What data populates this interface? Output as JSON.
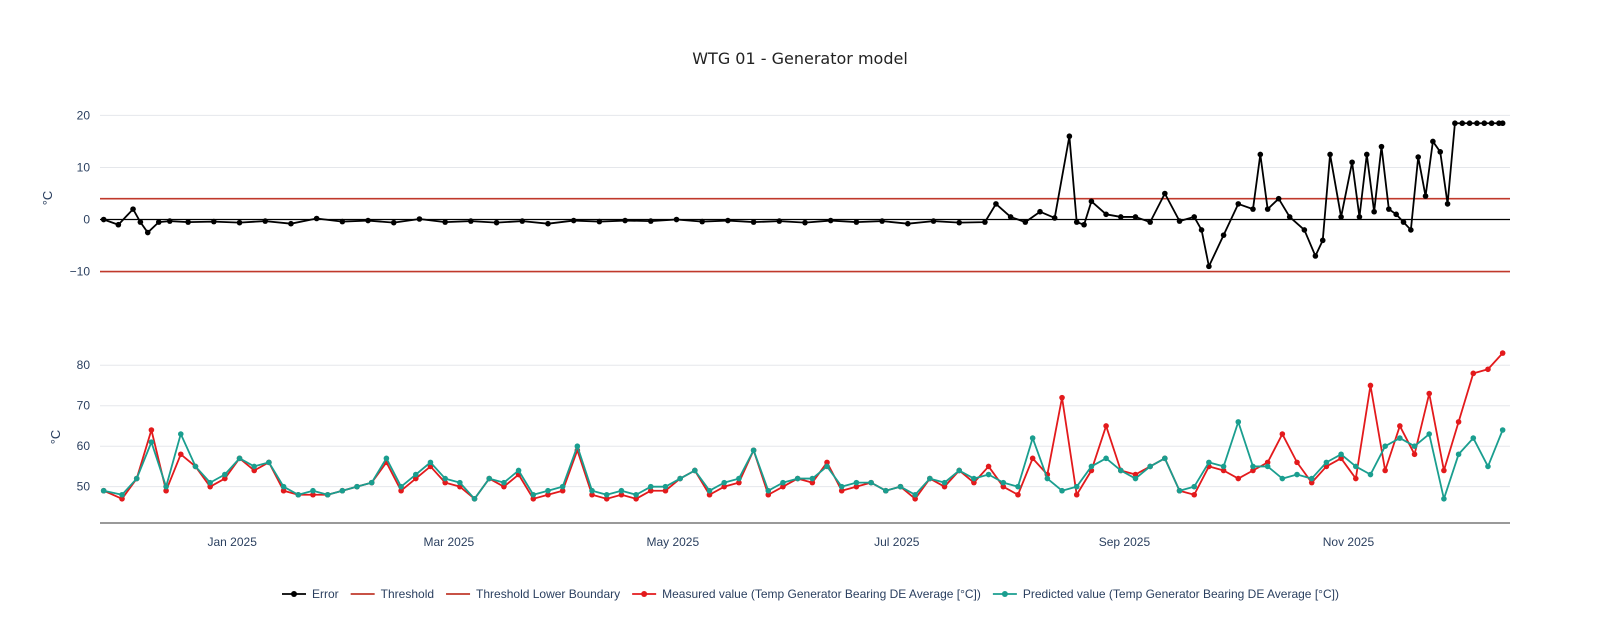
{
  "chart_data": [
    {
      "type": "line",
      "panel": "top",
      "title": "WTG 01 - Generator model",
      "ylabel": "°C",
      "ylim": [
        -12,
        22
      ],
      "yticks": [
        20,
        10,
        0,
        -10
      ],
      "ytick_labels": [
        "20",
        "10",
        "0",
        "−10"
      ],
      "xlim": [
        "2024-11-26",
        "2025-12-15"
      ],
      "grid": true,
      "series": [
        {
          "name": "Error",
          "color": "#000000",
          "x": [
            "2024-11-27",
            "2024-12-01",
            "2024-12-05",
            "2024-12-07",
            "2024-12-09",
            "2024-12-12",
            "2024-12-15",
            "2024-12-20",
            "2024-12-27",
            "2025-01-03",
            "2025-01-10",
            "2025-01-17",
            "2025-01-24",
            "2025-01-31",
            "2025-02-07",
            "2025-02-14",
            "2025-02-21",
            "2025-02-28",
            "2025-03-07",
            "2025-03-14",
            "2025-03-21",
            "2025-03-28",
            "2025-04-04",
            "2025-04-11",
            "2025-04-18",
            "2025-04-25",
            "2025-05-02",
            "2025-05-09",
            "2025-05-16",
            "2025-05-23",
            "2025-05-30",
            "2025-06-06",
            "2025-06-13",
            "2025-06-20",
            "2025-06-27",
            "2025-07-04",
            "2025-07-11",
            "2025-07-18",
            "2025-07-25",
            "2025-07-28",
            "2025-08-01",
            "2025-08-05",
            "2025-08-09",
            "2025-08-13",
            "2025-08-17",
            "2025-08-19",
            "2025-08-21",
            "2025-08-23",
            "2025-08-27",
            "2025-08-31",
            "2025-09-04",
            "2025-09-08",
            "2025-09-12",
            "2025-09-16",
            "2025-09-20",
            "2025-09-22",
            "2025-09-24",
            "2025-09-28",
            "2025-10-02",
            "2025-10-06",
            "2025-10-08",
            "2025-10-10",
            "2025-10-13",
            "2025-10-16",
            "2025-10-20",
            "2025-10-23",
            "2025-10-25",
            "2025-10-27",
            "2025-10-30",
            "2025-11-02",
            "2025-11-04",
            "2025-11-06",
            "2025-11-08",
            "2025-11-10",
            "2025-11-12",
            "2025-11-14",
            "2025-11-16",
            "2025-11-18",
            "2025-11-20",
            "2025-11-22",
            "2025-11-24",
            "2025-11-26",
            "2025-11-28",
            "2025-11-30",
            "2025-12-02",
            "2025-12-04",
            "2025-12-06",
            "2025-12-08",
            "2025-12-10",
            "2025-12-12",
            "2025-12-13"
          ],
          "values": [
            0,
            -1,
            2,
            -0.5,
            -2.5,
            -0.5,
            -0.3,
            -0.5,
            -0.4,
            -0.6,
            -0.3,
            -0.8,
            0.2,
            -0.4,
            -0.2,
            -0.6,
            0.1,
            -0.5,
            -0.3,
            -0.6,
            -0.3,
            -0.8,
            -0.2,
            -0.4,
            -0.2,
            -0.3,
            0,
            -0.4,
            -0.2,
            -0.5,
            -0.3,
            -0.6,
            -0.2,
            -0.5,
            -0.3,
            -0.8,
            -0.3,
            -0.6,
            -0.5,
            3,
            0.5,
            -0.5,
            1.5,
            0.3,
            16,
            -0.5,
            -1,
            3.5,
            1,
            0.5,
            0.5,
            -0.5,
            5,
            -0.3,
            0.5,
            -2,
            -9,
            -3,
            3,
            2,
            12.5,
            2,
            4,
            0.5,
            -2,
            -7,
            -4,
            12.5,
            0.5,
            11,
            0.5,
            12.5,
            1.5,
            14,
            2,
            1,
            -0.5,
            -2,
            12,
            4.5,
            15,
            13,
            3,
            18.5,
            18.5,
            18.5,
            18.5,
            18.5,
            18.5,
            18.5,
            18.5
          ]
        },
        {
          "name": "Threshold",
          "color": "#c0392b",
          "y": 4
        },
        {
          "name": "Threshold Lower Boundary",
          "color": "#c0392b",
          "y": -10
        }
      ]
    },
    {
      "type": "line",
      "panel": "bottom",
      "ylabel": "°C",
      "ylim": [
        43,
        85
      ],
      "yticks": [
        80,
        70,
        60,
        50
      ],
      "ytick_labels": [
        "80",
        "70",
        "60",
        "50"
      ],
      "xlim": [
        "2024-11-26",
        "2025-12-15"
      ],
      "xticks": [
        "2025-01-01",
        "2025-03-01",
        "2025-05-01",
        "2025-07-01",
        "2025-09-01",
        "2025-11-01"
      ],
      "xtick_labels": [
        "Jan 2025",
        "Mar 2025",
        "May 2025",
        "Jul 2025",
        "Sep 2025",
        "Nov 2025"
      ],
      "grid": true,
      "series": [
        {
          "name": "Measured value (Temp Generator Bearing DE Average [°C])",
          "color": "#e31a1c",
          "x": [
            "2024-11-27",
            "2024-12-02",
            "2024-12-06",
            "2024-12-10",
            "2024-12-14",
            "2024-12-18",
            "2024-12-22",
            "2024-12-26",
            "2024-12-30",
            "2025-01-03",
            "2025-01-07",
            "2025-01-11",
            "2025-01-15",
            "2025-01-19",
            "2025-01-23",
            "2025-01-27",
            "2025-01-31",
            "2025-02-04",
            "2025-02-08",
            "2025-02-12",
            "2025-02-16",
            "2025-02-20",
            "2025-02-24",
            "2025-02-28",
            "2025-03-04",
            "2025-03-08",
            "2025-03-12",
            "2025-03-16",
            "2025-03-20",
            "2025-03-24",
            "2025-03-28",
            "2025-04-01",
            "2025-04-05",
            "2025-04-09",
            "2025-04-13",
            "2025-04-17",
            "2025-04-21",
            "2025-04-25",
            "2025-04-29",
            "2025-05-03",
            "2025-05-07",
            "2025-05-11",
            "2025-05-15",
            "2025-05-19",
            "2025-05-23",
            "2025-05-27",
            "2025-05-31",
            "2025-06-04",
            "2025-06-08",
            "2025-06-12",
            "2025-06-16",
            "2025-06-20",
            "2025-06-24",
            "2025-06-28",
            "2025-07-02",
            "2025-07-06",
            "2025-07-10",
            "2025-07-14",
            "2025-07-18",
            "2025-07-22",
            "2025-07-26",
            "2025-07-30",
            "2025-08-03",
            "2025-08-07",
            "2025-08-11",
            "2025-08-15",
            "2025-08-19",
            "2025-08-23",
            "2025-08-27",
            "2025-08-31",
            "2025-09-04",
            "2025-09-08",
            "2025-09-12",
            "2025-09-16",
            "2025-09-20",
            "2025-09-24",
            "2025-09-28",
            "2025-10-02",
            "2025-10-06",
            "2025-10-10",
            "2025-10-14",
            "2025-10-18",
            "2025-10-22",
            "2025-10-26",
            "2025-10-30",
            "2025-11-03",
            "2025-11-07",
            "2025-11-11",
            "2025-11-15",
            "2025-11-19",
            "2025-11-23",
            "2025-11-27",
            "2025-12-01",
            "2025-12-05",
            "2025-12-09",
            "2025-12-13"
          ],
          "values": [
            49,
            47,
            52,
            64,
            49,
            58,
            55,
            50,
            52,
            57,
            54,
            56,
            49,
            48,
            48,
            48,
            49,
            50,
            51,
            56,
            49,
            52,
            55,
            51,
            50,
            47,
            52,
            50,
            53,
            47,
            48,
            49,
            59,
            48,
            47,
            48,
            47,
            49,
            49,
            52,
            54,
            48,
            50,
            51,
            59,
            48,
            50,
            52,
            51,
            56,
            49,
            50,
            51,
            49,
            50,
            47,
            52,
            50,
            54,
            51,
            55,
            50,
            48,
            57,
            53,
            72,
            48,
            54,
            65,
            54,
            53,
            55,
            57,
            49,
            48,
            55,
            54,
            52,
            54,
            56,
            63,
            56,
            51,
            55,
            57,
            52,
            75,
            54,
            65,
            58,
            73,
            54,
            66,
            78,
            79,
            83
          ]
        },
        {
          "name": "Predicted value (Temp Generator Bearing DE Average [°C])",
          "color": "#1a9e8f",
          "x": [
            "2024-11-27",
            "2024-12-02",
            "2024-12-06",
            "2024-12-10",
            "2024-12-14",
            "2024-12-18",
            "2024-12-22",
            "2024-12-26",
            "2024-12-30",
            "2025-01-03",
            "2025-01-07",
            "2025-01-11",
            "2025-01-15",
            "2025-01-19",
            "2025-01-23",
            "2025-01-27",
            "2025-01-31",
            "2025-02-04",
            "2025-02-08",
            "2025-02-12",
            "2025-02-16",
            "2025-02-20",
            "2025-02-24",
            "2025-02-28",
            "2025-03-04",
            "2025-03-08",
            "2025-03-12",
            "2025-03-16",
            "2025-03-20",
            "2025-03-24",
            "2025-03-28",
            "2025-04-01",
            "2025-04-05",
            "2025-04-09",
            "2025-04-13",
            "2025-04-17",
            "2025-04-21",
            "2025-04-25",
            "2025-04-29",
            "2025-05-03",
            "2025-05-07",
            "2025-05-11",
            "2025-05-15",
            "2025-05-19",
            "2025-05-23",
            "2025-05-27",
            "2025-05-31",
            "2025-06-04",
            "2025-06-08",
            "2025-06-12",
            "2025-06-16",
            "2025-06-20",
            "2025-06-24",
            "2025-06-28",
            "2025-07-02",
            "2025-07-06",
            "2025-07-10",
            "2025-07-14",
            "2025-07-18",
            "2025-07-22",
            "2025-07-26",
            "2025-07-30",
            "2025-08-03",
            "2025-08-07",
            "2025-08-11",
            "2025-08-15",
            "2025-08-19",
            "2025-08-23",
            "2025-08-27",
            "2025-08-31",
            "2025-09-04",
            "2025-09-08",
            "2025-09-12",
            "2025-09-16",
            "2025-09-20",
            "2025-09-24",
            "2025-09-28",
            "2025-10-02",
            "2025-10-06",
            "2025-10-10",
            "2025-10-14",
            "2025-10-18",
            "2025-10-22",
            "2025-10-26",
            "2025-10-30",
            "2025-11-03",
            "2025-11-07",
            "2025-11-11",
            "2025-11-15",
            "2025-11-19",
            "2025-11-23",
            "2025-11-27",
            "2025-12-01",
            "2025-12-05",
            "2025-12-09",
            "2025-12-13"
          ],
          "values": [
            49,
            48,
            52,
            61,
            50,
            63,
            55,
            51,
            53,
            57,
            55,
            56,
            50,
            48,
            49,
            48,
            49,
            50,
            51,
            57,
            50,
            53,
            56,
            52,
            51,
            47,
            52,
            51,
            54,
            48,
            49,
            50,
            60,
            49,
            48,
            49,
            48,
            50,
            50,
            52,
            54,
            49,
            51,
            52,
            59,
            49,
            51,
            52,
            52,
            55,
            50,
            51,
            51,
            49,
            50,
            48,
            52,
            51,
            54,
            52,
            53,
            51,
            50,
            62,
            52,
            49,
            50,
            55,
            57,
            54,
            52,
            55,
            57,
            49,
            50,
            56,
            55,
            66,
            55,
            55,
            52,
            53,
            52,
            56,
            58,
            55,
            53,
            60,
            62,
            60,
            63,
            47,
            58,
            62,
            55,
            64
          ]
        }
      ]
    }
  ],
  "legend": {
    "placement": "bottom-center",
    "items": [
      {
        "label": "Error",
        "color": "#000000",
        "marker": true
      },
      {
        "label": "Threshold",
        "color": "#c0392b",
        "marker": false
      },
      {
        "label": "Threshold Lower Boundary",
        "color": "#c0392b",
        "marker": false
      },
      {
        "label": "Measured value (Temp Generator Bearing DE Average [°C])",
        "color": "#e31a1c",
        "marker": true
      },
      {
        "label": "Predicted value (Temp Generator Bearing DE Average [°C])",
        "color": "#1a9e8f",
        "marker": true
      }
    ]
  }
}
